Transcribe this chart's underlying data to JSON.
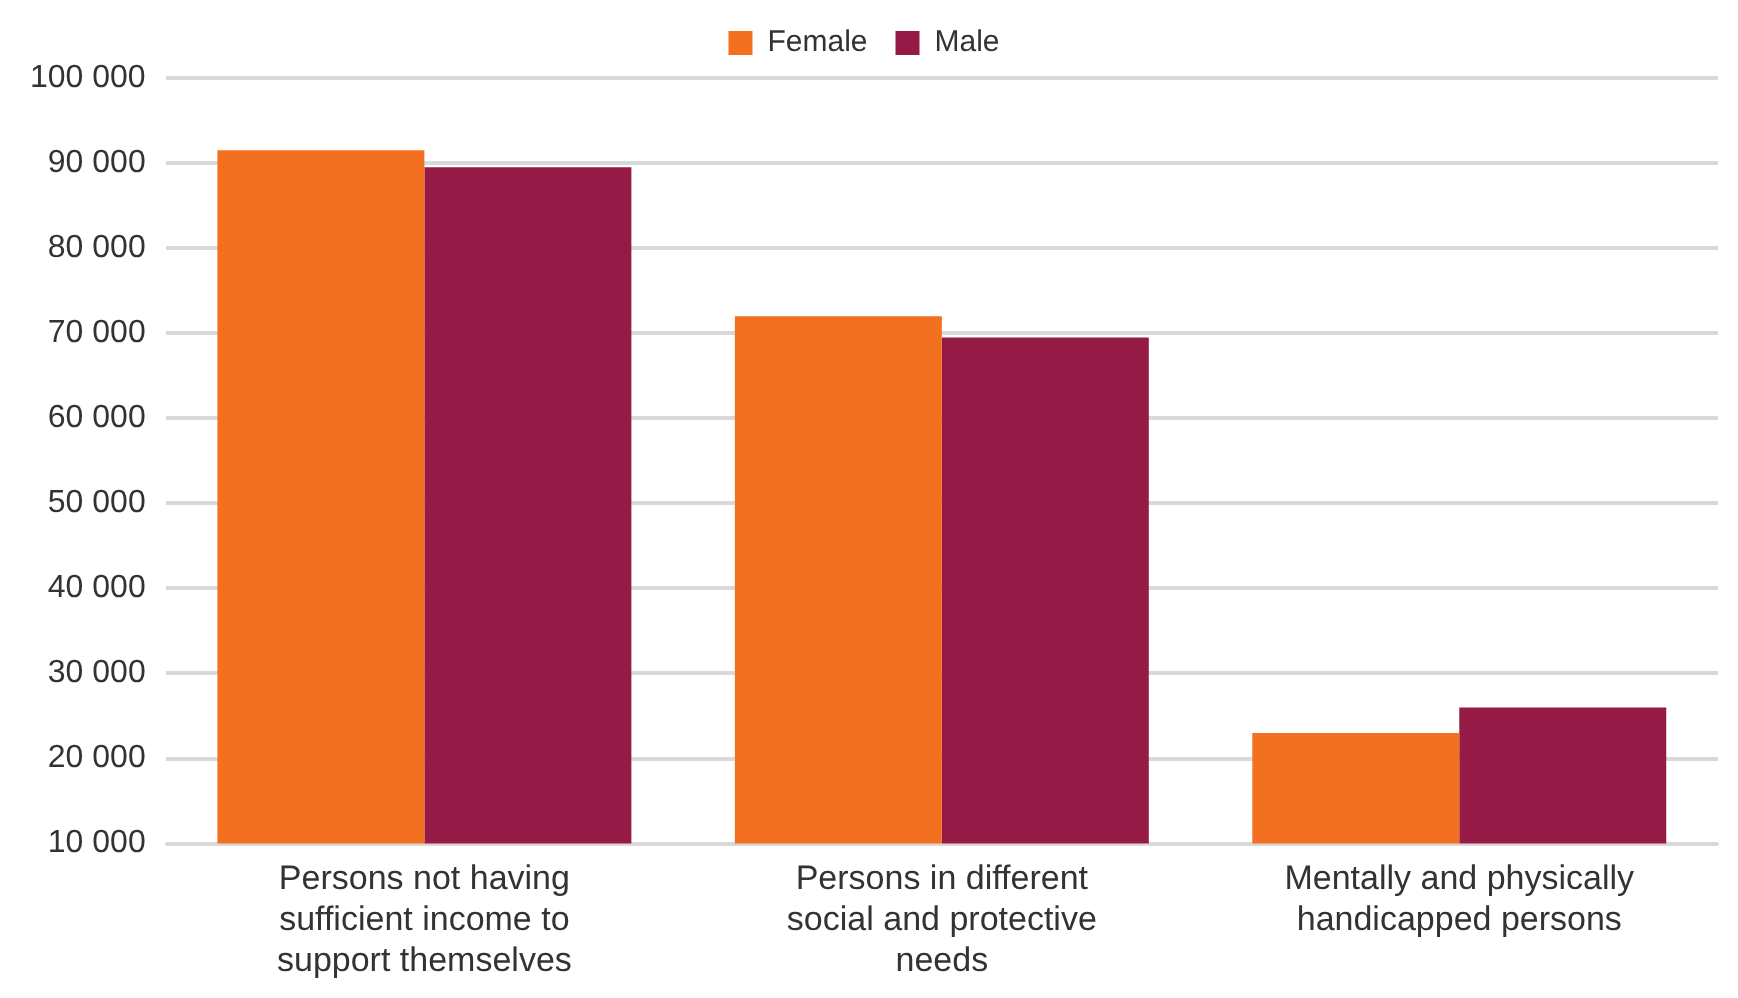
{
  "chart_data": {
    "type": "bar",
    "categories": [
      "Persons not having sufficient income to support themselves",
      "Persons in different social and protective needs",
      "Mentally and physically handicapped persons"
    ],
    "series": [
      {
        "name": "Female",
        "color": "#f37021",
        "values": [
          91500,
          72000,
          23000
        ]
      },
      {
        "name": "Male",
        "color": "#961a46",
        "values": [
          89500,
          69500,
          26000
        ]
      }
    ],
    "ylim": [
      10000,
      100000
    ],
    "yticks": [
      {
        "value": 10000,
        "label": "10 000"
      },
      {
        "value": 20000,
        "label": "20 000"
      },
      {
        "value": 30000,
        "label": "30 000"
      },
      {
        "value": 40000,
        "label": "40 000"
      },
      {
        "value": 50000,
        "label": "50 000"
      },
      {
        "value": 60000,
        "label": "60 000"
      },
      {
        "value": 70000,
        "label": "70 000"
      },
      {
        "value": 80000,
        "label": "80 000"
      },
      {
        "value": 90000,
        "label": "90 000"
      },
      {
        "value": 100000,
        "label": "100 000"
      }
    ],
    "grid": "y",
    "legend": "top"
  }
}
